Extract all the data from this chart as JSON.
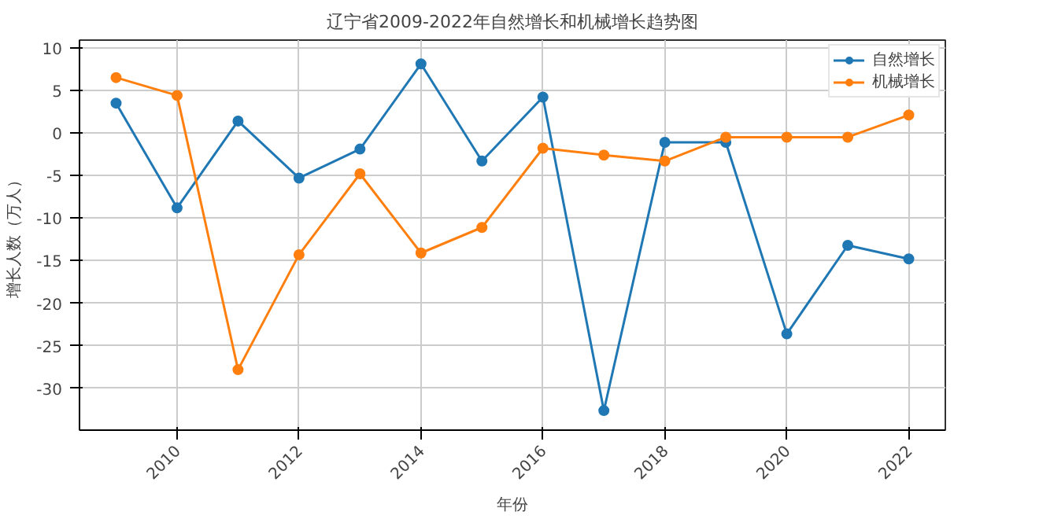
{
  "chart_data": {
    "type": "line",
    "title": "辽宁省2009-2022年自然增长和机械增长趋势图",
    "xlabel": "年份",
    "ylabel": "增长人数（万人）",
    "x": [
      2009,
      2010,
      2011,
      2012,
      2013,
      2014,
      2015,
      2016,
      2017,
      2018,
      2019,
      2020,
      2021,
      2022
    ],
    "series": [
      {
        "name": "自然增长",
        "color": "#1f77b4",
        "values": [
          3.5,
          -8.8,
          1.4,
          -5.3,
          -1.9,
          8.1,
          -3.3,
          4.2,
          -32.6,
          -1.1,
          -1.1,
          -23.6,
          -13.2,
          -14.8
        ]
      },
      {
        "name": "机械增长",
        "color": "#ff7f0e",
        "values": [
          6.5,
          4.4,
          -27.8,
          -14.3,
          -4.8,
          -14.1,
          -11.1,
          -1.8,
          -2.6,
          -3.3,
          -0.5,
          -0.5,
          -0.5,
          2.1
        ]
      }
    ],
    "xlim": [
      2008.4,
      2022.6
    ],
    "ylim": [
      -34.9,
      10.9
    ],
    "xticks": [
      2010,
      2012,
      2014,
      2016,
      2018,
      2020,
      2022
    ],
    "yticks": [
      -30,
      -25,
      -20,
      -15,
      -10,
      -5,
      0,
      5,
      10
    ],
    "grid": true,
    "legend": "top right",
    "marker": "circle",
    "line_style": "solid"
  }
}
